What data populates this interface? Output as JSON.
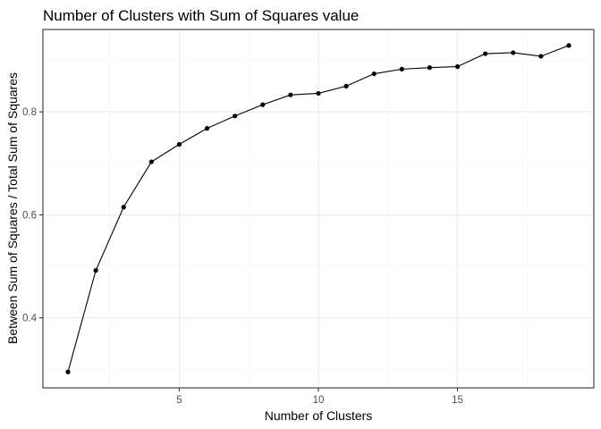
{
  "chart_data": {
    "type": "line",
    "title": "Number of Clusters with Sum of Squares value",
    "xlabel": "Number of Clusters",
    "ylabel": "Between Sum of Squares / Total Sum of Squares",
    "x": [
      1,
      2,
      3,
      4,
      5,
      6,
      7,
      8,
      9,
      10,
      11,
      12,
      13,
      14,
      15,
      16,
      17,
      18,
      19
    ],
    "series": [
      {
        "values": [
          0.295,
          0.492,
          0.615,
          0.703,
          0.737,
          0.768,
          0.792,
          0.814,
          0.833,
          0.836,
          0.85,
          0.874,
          0.883,
          0.886,
          0.888,
          0.913,
          0.915,
          0.908,
          0.929
        ],
        "color": "#000000",
        "markers": true
      }
    ],
    "xlim": [
      0.1,
      19.9
    ],
    "ylim": [
      0.264,
      0.96
    ],
    "xticks": [
      5,
      10,
      15
    ],
    "xtick_labels": [
      "5",
      "10",
      "15"
    ],
    "yticks": [
      0.4,
      0.6,
      0.8
    ],
    "ytick_labels": [
      "0.4",
      "0.6",
      "0.8"
    ],
    "grid": true,
    "legend": "none"
  }
}
